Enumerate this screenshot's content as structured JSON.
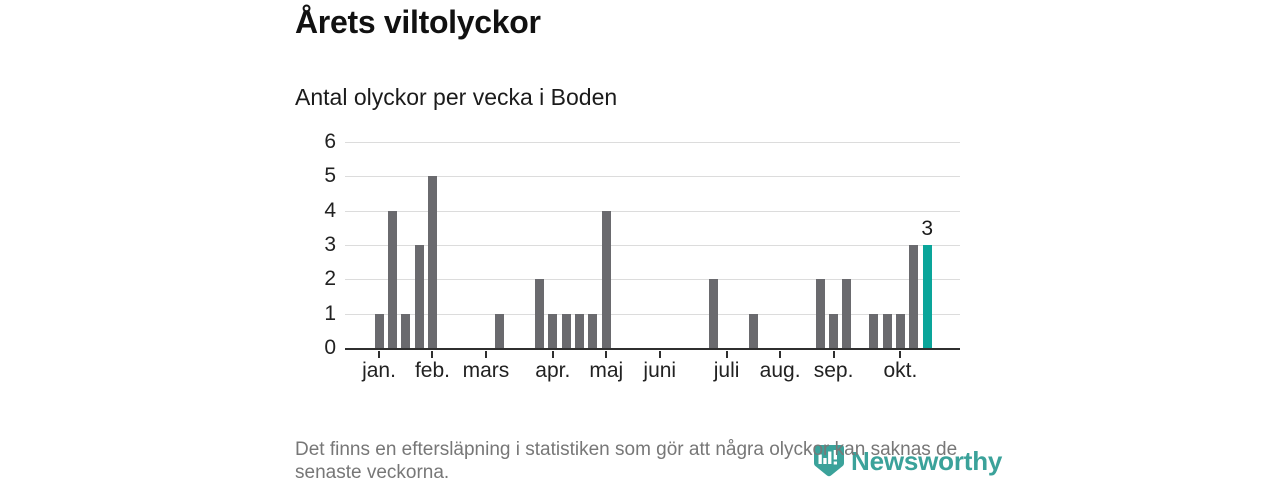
{
  "header": {
    "title": "Årets viltolyckor",
    "subtitle": "Antal olyckor per vecka i Boden"
  },
  "chart_data": {
    "type": "bar",
    "title": "Årets viltolyckor",
    "subtitle": "Antal olyckor per vecka i Boden",
    "x_unit": "vecka",
    "values": [
      1,
      4,
      1,
      3,
      5,
      0,
      0,
      0,
      0,
      1,
      0,
      0,
      2,
      1,
      1,
      1,
      1,
      4,
      0,
      0,
      0,
      0,
      0,
      0,
      0,
      2,
      0,
      0,
      1,
      0,
      0,
      0,
      0,
      2,
      1,
      2,
      0,
      1,
      1,
      1,
      3,
      3
    ],
    "y_ticks": [
      0,
      1,
      2,
      3,
      4,
      5,
      6
    ],
    "ylim": [
      0,
      6
    ],
    "grid": true,
    "month_ticks": [
      {
        "label": "jan.",
        "week": 1
      },
      {
        "label": "feb.",
        "week": 5
      },
      {
        "label": "mars",
        "week": 9
      },
      {
        "label": "apr.",
        "week": 14
      },
      {
        "label": "maj",
        "week": 18
      },
      {
        "label": "juni",
        "week": 22
      },
      {
        "label": "juli",
        "week": 27
      },
      {
        "label": "aug.",
        "week": 31
      },
      {
        "label": "sep.",
        "week": 35
      },
      {
        "label": "okt.",
        "week": 40
      }
    ],
    "bar_color": "#6a6a6e",
    "highlight": {
      "week": 42,
      "value": 3,
      "label": "3",
      "color": "#0aa59a"
    }
  },
  "footer": {
    "note": "Det finns en eftersläpning i statistiken som gör att några olyckor kan saknas de senaste veckorna.",
    "logo_text": "Newsworthy",
    "logo_color": "#3ba29a"
  }
}
